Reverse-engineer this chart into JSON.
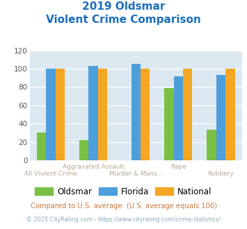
{
  "title_line1": "2019 Oldsmar",
  "title_line2": "Violent Crime Comparison",
  "cat_labels_row1": [
    "",
    "Aggravated Assault",
    "",
    "Rape",
    ""
  ],
  "cat_labels_row2": [
    "All Violent Crime",
    "",
    "Murder & Mans...",
    "",
    "Robbery"
  ],
  "oldsmar": [
    30,
    22,
    0,
    79,
    33
  ],
  "florida": [
    100,
    103,
    105,
    92,
    93
  ],
  "national": [
    100,
    100,
    100,
    100,
    100
  ],
  "bar_color_oldsmar": "#7ac143",
  "bar_color_florida": "#4d9fdc",
  "bar_color_national": "#f5a623",
  "ylim": [
    0,
    120
  ],
  "yticks": [
    0,
    20,
    40,
    60,
    80,
    100,
    120
  ],
  "bg_color": "#dce9f0",
  "title_color": "#1a6ebd",
  "xlabel_color": "#b8a898",
  "legend_label_oldsmar": "Oldsmar",
  "legend_label_florida": "Florida",
  "legend_label_national": "National",
  "footnote1": "Compared to U.S. average. (U.S. average equals 100)",
  "footnote2": "© 2025 CityRating.com - https://www.cityrating.com/crime-statistics/",
  "footnote1_color": "#c87941",
  "footnote2_color": "#8aabbd",
  "grid_color": "white"
}
